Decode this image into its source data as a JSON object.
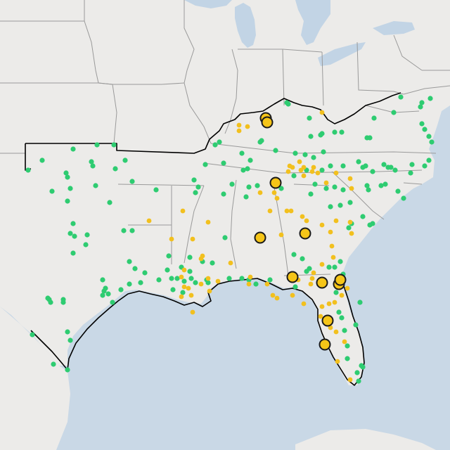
{
  "map": {
    "colors": {
      "land": "#ecebe9",
      "water": "#c9d8e6",
      "lake": "#c2d4e5",
      "border": "#9a9a9a",
      "region_outline": "#000000",
      "marker_green": "#2ecc71",
      "marker_yellow": "#f2c01e",
      "marker_large_fill": "#f5c518",
      "marker_large_stroke": "#1a1a1a"
    },
    "markers": {
      "green_count": 178,
      "yellow_count": 78,
      "large_yellow_count": 11
    }
  }
}
